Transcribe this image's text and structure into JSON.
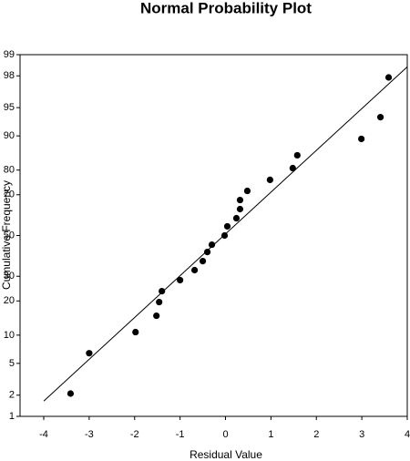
{
  "chart_data": {
    "type": "probability-scatter",
    "title": "Normal Probability Plot",
    "x_label": "Residual Value",
    "y_label": "Cumulative Frequency",
    "y_scale": "normal-probability",
    "xlim": [
      -4,
      4
    ],
    "xticks": [
      -4,
      -3,
      -2,
      -1,
      0,
      1,
      2,
      3,
      4
    ],
    "ylim": [
      1,
      99
    ],
    "yticks": [
      1,
      2,
      5,
      10,
      20,
      30,
      50,
      70,
      80,
      90,
      95,
      98,
      99
    ],
    "grid": false,
    "color": "#000000",
    "x": [
      -3.41,
      -3.0,
      -1.98,
      -1.52,
      -1.46,
      -1.4,
      -1.0,
      -0.68,
      -0.5,
      -0.4,
      -0.3,
      -0.02,
      0.04,
      0.24,
      0.32,
      0.32,
      0.48,
      0.98,
      1.48,
      1.58,
      2.99,
      3.41,
      3.59
    ],
    "values": [
      2.1,
      6.5,
      10.7,
      15.1,
      19.6,
      23.7,
      28.3,
      32.8,
      37.1,
      41.6,
      45.3,
      50,
      54.7,
      58.8,
      63.3,
      67.6,
      71.7,
      76.3,
      80.7,
      84.9,
      89.3,
      93.6,
      97.9
    ],
    "reference_line": {
      "x": [
        -4,
        4
      ],
      "y": [
        1.66,
        98.5
      ]
    }
  }
}
